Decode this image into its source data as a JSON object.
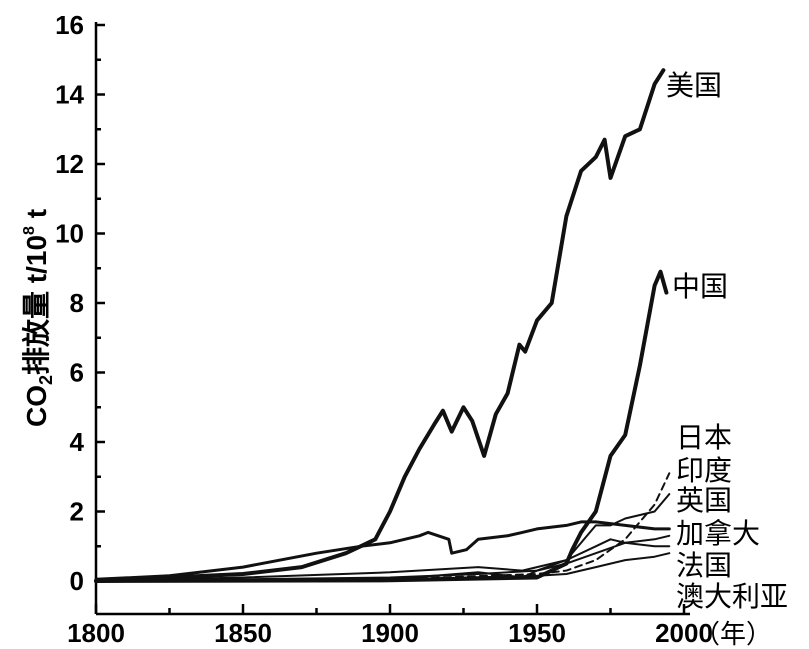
{
  "chart_data": {
    "type": "line",
    "title": "",
    "ylabel": "CO₂排放量 t/10⁸ t",
    "ylabel_parts": {
      "base": "CO",
      "sub": "2",
      "mid": "排放量 t/10",
      "sup": "8",
      "tail": " t"
    },
    "xlabel": "（年）",
    "xlim": [
      1800,
      2000
    ],
    "ylim": [
      0,
      16
    ],
    "x_ticks": [
      "1800",
      "1850",
      "1900",
      "1950",
      "2000"
    ],
    "y_ticks": [
      "0",
      "2",
      "4",
      "6",
      "8",
      "10",
      "12",
      "14",
      "16"
    ],
    "x_tick_values": [
      1800,
      1850,
      1900,
      1950,
      2000
    ],
    "y_tick_values": [
      0,
      2,
      4,
      6,
      8,
      10,
      12,
      14,
      16
    ],
    "grid": false,
    "legend": "labels at line ends (right)",
    "series": [
      {
        "name": "美国",
        "style": "solid-bold",
        "x": [
          1800,
          1850,
          1870,
          1885,
          1890,
          1895,
          1900,
          1905,
          1910,
          1915,
          1918,
          1921,
          1925,
          1928,
          1932,
          1936,
          1940,
          1944,
          1946,
          1950,
          1955,
          1960,
          1965,
          1970,
          1973,
          1975,
          1980,
          1985,
          1990,
          1993
        ],
        "y": [
          0,
          0.2,
          0.4,
          0.8,
          1.0,
          1.2,
          2.0,
          3.0,
          3.8,
          4.5,
          4.9,
          4.3,
          5.0,
          4.6,
          3.6,
          4.8,
          5.4,
          6.8,
          6.6,
          7.5,
          8.0,
          10.5,
          11.8,
          12.2,
          12.7,
          11.6,
          12.8,
          13.0,
          14.3,
          14.7
        ]
      },
      {
        "name": "中国",
        "style": "solid-bold",
        "x": [
          1800,
          1900,
          1950,
          1960,
          1962,
          1965,
          1970,
          1975,
          1980,
          1985,
          1990,
          1992,
          1994
        ],
        "y": [
          0,
          0.02,
          0.1,
          0.5,
          0.9,
          1.4,
          2.0,
          3.6,
          4.2,
          6.2,
          8.5,
          8.9,
          8.3
        ]
      },
      {
        "name": "日本",
        "style": "thin",
        "x": [
          1800,
          1900,
          1930,
          1945,
          1950,
          1960,
          1970,
          1975,
          1980,
          1990,
          1995
        ],
        "y": [
          0,
          0.05,
          0.25,
          0.1,
          0.3,
          0.6,
          1.6,
          1.6,
          1.8,
          2.0,
          2.5
        ]
      },
      {
        "name": "印度",
        "style": "dashed",
        "x": [
          1800,
          1900,
          1950,
          1960,
          1970,
          1980,
          1985,
          1990,
          1995
        ],
        "y": [
          0,
          0.05,
          0.2,
          0.3,
          0.6,
          1.2,
          1.7,
          2.2,
          3.1
        ]
      },
      {
        "name": "英国",
        "style": "solid",
        "x": [
          1800,
          1825,
          1850,
          1875,
          1890,
          1900,
          1910,
          1913,
          1920,
          1921,
          1926,
          1930,
          1940,
          1945,
          1950,
          1960,
          1965,
          1970,
          1980,
          1990,
          1995
        ],
        "y": [
          0.05,
          0.15,
          0.4,
          0.8,
          1.0,
          1.1,
          1.3,
          1.4,
          1.2,
          0.8,
          0.9,
          1.2,
          1.3,
          1.4,
          1.5,
          1.6,
          1.7,
          1.7,
          1.6,
          1.5,
          1.5
        ]
      },
      {
        "name": "加拿大",
        "style": "thin",
        "x": [
          1800,
          1900,
          1930,
          1950,
          1960,
          1970,
          1980,
          1990,
          1995
        ],
        "y": [
          0,
          0.1,
          0.2,
          0.3,
          0.5,
          0.8,
          1.1,
          1.2,
          1.3
        ]
      },
      {
        "name": "法国",
        "style": "thin",
        "x": [
          1800,
          1850,
          1900,
          1930,
          1945,
          1960,
          1970,
          1975,
          1980,
          1990,
          1995
        ],
        "y": [
          0,
          0.1,
          0.25,
          0.4,
          0.3,
          0.6,
          1.0,
          1.2,
          1.1,
          1.0,
          1.0
        ]
      },
      {
        "name": "澳大利亚",
        "style": "thin",
        "x": [
          1800,
          1900,
          1950,
          1960,
          1970,
          1980,
          1990,
          1995
        ],
        "y": [
          0,
          0.05,
          0.15,
          0.2,
          0.4,
          0.6,
          0.7,
          0.8
        ]
      }
    ]
  }
}
